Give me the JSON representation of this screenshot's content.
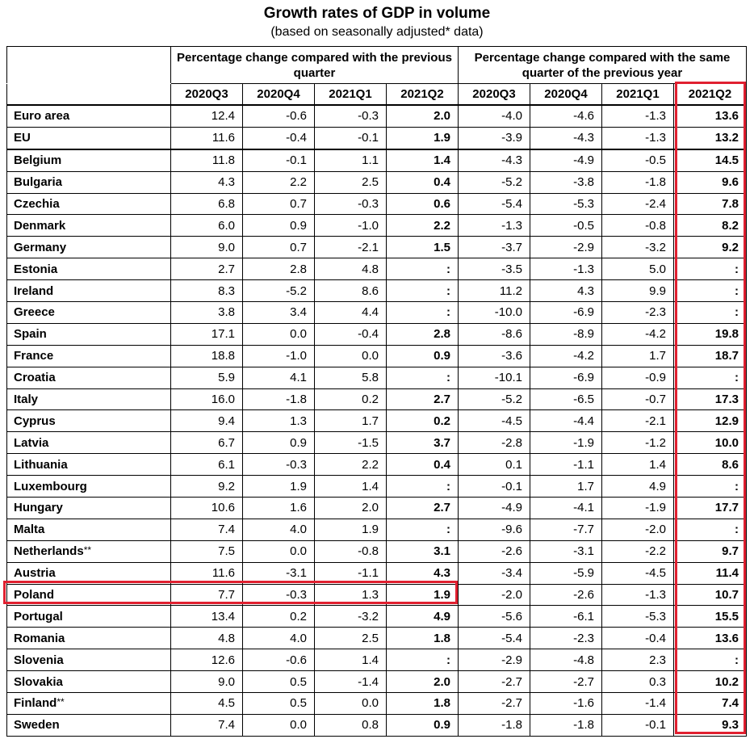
{
  "title": "Growth rates of GDP in volume",
  "subtitle": "(based on seasonally adjusted* data)",
  "headers": {
    "group1": "Percentage change compared with the previous quarter",
    "group2": "Percentage change compared with the same quarter of the previous year",
    "quarters": [
      "2020Q3",
      "2020Q4",
      "2021Q1",
      "2021Q2",
      "2020Q3",
      "2020Q4",
      "2021Q1",
      "2021Q2"
    ]
  },
  "highlight": {
    "color": "#e02030",
    "row": "Poland",
    "column": "2021Q2 (same quarter of previous year)"
  },
  "rows": [
    {
      "country": "Euro area",
      "note": "",
      "values": [
        "12.4",
        "-0.6",
        "-0.3",
        "2.0",
        "-4.0",
        "-4.6",
        "-1.3",
        "13.6"
      ]
    },
    {
      "country": "EU",
      "note": "",
      "values": [
        "11.6",
        "-0.4",
        "-0.1",
        "1.9",
        "-3.9",
        "-4.3",
        "-1.3",
        "13.2"
      ]
    },
    {
      "country": "Belgium",
      "note": "",
      "values": [
        "11.8",
        "-0.1",
        "1.1",
        "1.4",
        "-4.3",
        "-4.9",
        "-0.5",
        "14.5"
      ]
    },
    {
      "country": "Bulgaria",
      "note": "",
      "values": [
        "4.3",
        "2.2",
        "2.5",
        "0.4",
        "-5.2",
        "-3.8",
        "-1.8",
        "9.6"
      ]
    },
    {
      "country": "Czechia",
      "note": "",
      "values": [
        "6.8",
        "0.7",
        "-0.3",
        "0.6",
        "-5.4",
        "-5.3",
        "-2.4",
        "7.8"
      ]
    },
    {
      "country": "Denmark",
      "note": "",
      "values": [
        "6.0",
        "0.9",
        "-1.0",
        "2.2",
        "-1.3",
        "-0.5",
        "-0.8",
        "8.2"
      ]
    },
    {
      "country": "Germany",
      "note": "",
      "values": [
        "9.0",
        "0.7",
        "-2.1",
        "1.5",
        "-3.7",
        "-2.9",
        "-3.2",
        "9.2"
      ]
    },
    {
      "country": "Estonia",
      "note": "",
      "values": [
        "2.7",
        "2.8",
        "4.8",
        ":",
        "-3.5",
        "-1.3",
        "5.0",
        ":"
      ]
    },
    {
      "country": "Ireland",
      "note": "",
      "values": [
        "8.3",
        "-5.2",
        "8.6",
        ":",
        "11.2",
        "4.3",
        "9.9",
        ":"
      ]
    },
    {
      "country": "Greece",
      "note": "",
      "values": [
        "3.8",
        "3.4",
        "4.4",
        ":",
        "-10.0",
        "-6.9",
        "-2.3",
        ":"
      ]
    },
    {
      "country": "Spain",
      "note": "",
      "values": [
        "17.1",
        "0.0",
        "-0.4",
        "2.8",
        "-8.6",
        "-8.9",
        "-4.2",
        "19.8"
      ]
    },
    {
      "country": "France",
      "note": "",
      "values": [
        "18.8",
        "-1.0",
        "0.0",
        "0.9",
        "-3.6",
        "-4.2",
        "1.7",
        "18.7"
      ]
    },
    {
      "country": "Croatia",
      "note": "",
      "values": [
        "5.9",
        "4.1",
        "5.8",
        ":",
        "-10.1",
        "-6.9",
        "-0.9",
        ":"
      ]
    },
    {
      "country": "Italy",
      "note": "",
      "values": [
        "16.0",
        "-1.8",
        "0.2",
        "2.7",
        "-5.2",
        "-6.5",
        "-0.7",
        "17.3"
      ]
    },
    {
      "country": "Cyprus",
      "note": "",
      "values": [
        "9.4",
        "1.3",
        "1.7",
        "0.2",
        "-4.5",
        "-4.4",
        "-2.1",
        "12.9"
      ]
    },
    {
      "country": "Latvia",
      "note": "",
      "values": [
        "6.7",
        "0.9",
        "-1.5",
        "3.7",
        "-2.8",
        "-1.9",
        "-1.2",
        "10.0"
      ]
    },
    {
      "country": "Lithuania",
      "note": "",
      "values": [
        "6.1",
        "-0.3",
        "2.2",
        "0.4",
        "0.1",
        "-1.1",
        "1.4",
        "8.6"
      ]
    },
    {
      "country": "Luxembourg",
      "note": "",
      "values": [
        "9.2",
        "1.9",
        "1.4",
        ":",
        "-0.1",
        "1.7",
        "4.9",
        ":"
      ]
    },
    {
      "country": "Hungary",
      "note": "",
      "values": [
        "10.6",
        "1.6",
        "2.0",
        "2.7",
        "-4.9",
        "-4.1",
        "-1.9",
        "17.7"
      ]
    },
    {
      "country": "Malta",
      "note": "",
      "values": [
        "7.4",
        "4.0",
        "1.9",
        ":",
        "-9.6",
        "-7.7",
        "-2.0",
        ":"
      ]
    },
    {
      "country": "Netherlands",
      "note": "**",
      "values": [
        "7.5",
        "0.0",
        "-0.8",
        "3.1",
        "-2.6",
        "-3.1",
        "-2.2",
        "9.7"
      ]
    },
    {
      "country": "Austria",
      "note": "",
      "values": [
        "11.6",
        "-3.1",
        "-1.1",
        "4.3",
        "-3.4",
        "-5.9",
        "-4.5",
        "11.4"
      ]
    },
    {
      "country": "Poland",
      "note": "",
      "values": [
        "7.7",
        "-0.3",
        "1.3",
        "1.9",
        "-2.0",
        "-2.6",
        "-1.3",
        "10.7"
      ]
    },
    {
      "country": "Portugal",
      "note": "",
      "values": [
        "13.4",
        "0.2",
        "-3.2",
        "4.9",
        "-5.6",
        "-6.1",
        "-5.3",
        "15.5"
      ]
    },
    {
      "country": "Romania",
      "note": "",
      "values": [
        "4.8",
        "4.0",
        "2.5",
        "1.8",
        "-5.4",
        "-2.3",
        "-0.4",
        "13.6"
      ]
    },
    {
      "country": "Slovenia",
      "note": "",
      "values": [
        "12.6",
        "-0.6",
        "1.4",
        ":",
        "-2.9",
        "-4.8",
        "2.3",
        ":"
      ]
    },
    {
      "country": "Slovakia",
      "note": "",
      "values": [
        "9.0",
        "0.5",
        "-1.4",
        "2.0",
        "-2.7",
        "-2.7",
        "0.3",
        "10.2"
      ]
    },
    {
      "country": "Finland",
      "note": "**",
      "values": [
        "4.5",
        "0.5",
        "0.0",
        "1.8",
        "-2.7",
        "-1.6",
        "-1.4",
        "7.4"
      ]
    },
    {
      "country": "Sweden",
      "note": "",
      "values": [
        "7.4",
        "0.0",
        "0.8",
        "0.9",
        "-1.8",
        "-1.8",
        "-0.1",
        "9.3"
      ]
    }
  ]
}
